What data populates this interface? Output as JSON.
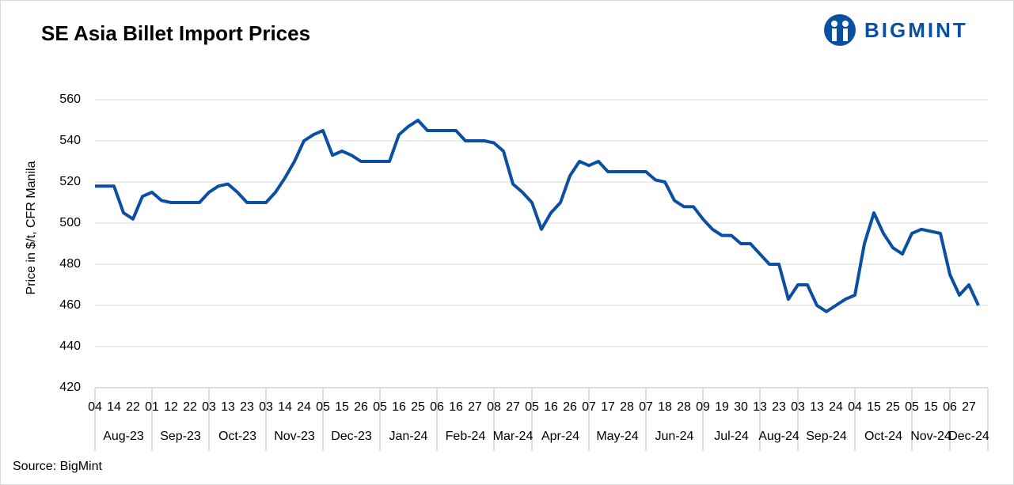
{
  "brand": "BIGMINT",
  "chart_data": {
    "type": "line",
    "title": "SE Asia Billet Import Prices",
    "y_label": "Price in $/t, CFR Manila",
    "source": "Source: BigMint",
    "categories": [
      "04",
      null,
      "14",
      null,
      "22",
      null,
      "01",
      null,
      "12",
      null,
      "22",
      null,
      "03",
      null,
      "13",
      null,
      "23",
      null,
      "03",
      null,
      "14",
      null,
      "24",
      null,
      "05",
      null,
      "15",
      null,
      "26",
      null,
      "05",
      null,
      "16",
      null,
      "25",
      null,
      "06",
      null,
      "16",
      null,
      "27",
      null,
      "08",
      null,
      "27",
      null,
      "05",
      null,
      "16",
      null,
      "26",
      null,
      "07",
      null,
      "17",
      null,
      "28",
      null,
      "07",
      null,
      "18",
      null,
      "28",
      null,
      "09",
      null,
      "19",
      null,
      "30",
      null,
      "13",
      null,
      "23",
      null,
      "03",
      null,
      "13",
      null,
      "24",
      null,
      "04",
      null,
      "15",
      null,
      "25",
      null,
      "05",
      null,
      "15",
      null,
      "06",
      null,
      "27",
      null
    ],
    "groups": [
      {
        "name": "Aug-23",
        "count": 6
      },
      {
        "name": "Sep-23",
        "count": 6
      },
      {
        "name": "Oct-23",
        "count": 6
      },
      {
        "name": "Nov-23",
        "count": 6
      },
      {
        "name": "Dec-23",
        "count": 6
      },
      {
        "name": "Jan-24",
        "count": 6
      },
      {
        "name": "Feb-24",
        "count": 6
      },
      {
        "name": "Mar-24",
        "count": 4
      },
      {
        "name": "Apr-24",
        "count": 6
      },
      {
        "name": "May-24",
        "count": 6
      },
      {
        "name": "Jun-24",
        "count": 6
      },
      {
        "name": "Jul-24",
        "count": 6
      },
      {
        "name": "Aug-24",
        "count": 4
      },
      {
        "name": "Sep-24",
        "count": 6
      },
      {
        "name": "Oct-24",
        "count": 6
      },
      {
        "name": "Nov-24",
        "count": 4
      },
      {
        "name": "Dec-24",
        "count": 4
      }
    ],
    "series": [
      {
        "name": "Price",
        "color": "#0b4fa3",
        "values": [
          518,
          518,
          518,
          505,
          502,
          513,
          515,
          511,
          510,
          510,
          510,
          510,
          515,
          518,
          519,
          515,
          510,
          510,
          510,
          515,
          522,
          530,
          540,
          543,
          545,
          533,
          535,
          533,
          530,
          530,
          530,
          530,
          543,
          547,
          550,
          545,
          545,
          545,
          545,
          540,
          540,
          540,
          539,
          535,
          519,
          515,
          510,
          497,
          505,
          510,
          523,
          530,
          528,
          530,
          525,
          525,
          525,
          525,
          525,
          521,
          520,
          511,
          508,
          508,
          502,
          497,
          494,
          494,
          490,
          490,
          485,
          480,
          480,
          463,
          470,
          470,
          460,
          457,
          460,
          463,
          465,
          490,
          505,
          495,
          488,
          485,
          495,
          497,
          496,
          495,
          475,
          465,
          470,
          460
        ]
      }
    ],
    "ylim": [
      420,
      560
    ],
    "yticks": [
      420,
      440,
      460,
      480,
      500,
      520,
      540,
      560
    ],
    "grid": true
  }
}
